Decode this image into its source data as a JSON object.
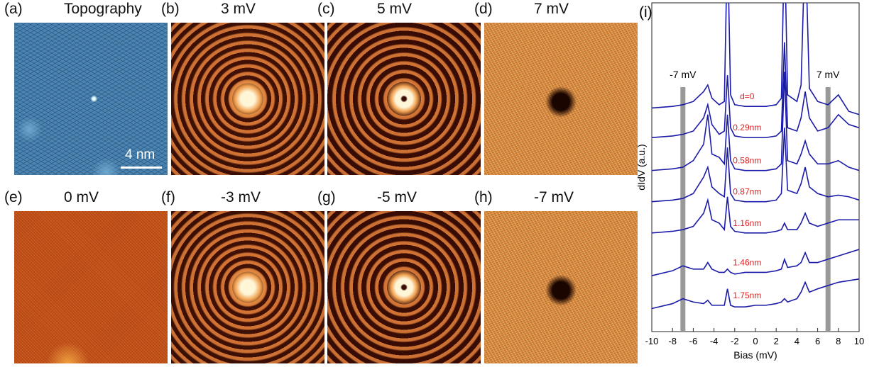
{
  "panels": [
    {
      "label": "(a)",
      "title": "Topography",
      "scale_bar": "4 nm"
    },
    {
      "label": "(b)",
      "title": "3 mV"
    },
    {
      "label": "(c)",
      "title": "5 mV"
    },
    {
      "label": "(d)",
      "title": "7 mV"
    },
    {
      "label": "(e)",
      "title": "0 mV"
    },
    {
      "label": "(f)",
      "title": "-3 mV"
    },
    {
      "label": "(g)",
      "title": "-5 mV"
    },
    {
      "label": "(h)",
      "title": "-7 mV"
    }
  ],
  "chart_data": {
    "type": "line",
    "panel_label": "(i)",
    "x_label": "Bias (mV)",
    "y_label": "dIdV (a.u.)",
    "xlim": [
      -10,
      10
    ],
    "xticks": [
      -10,
      -8,
      -6,
      -4,
      -2,
      0,
      2,
      4,
      6,
      8,
      10
    ],
    "ylim": [
      0,
      10
    ],
    "bands": [
      {
        "x": -7,
        "label": "-7 mV"
      },
      {
        "x": 7,
        "label": "7 mV"
      }
    ],
    "label_color": "#e02020",
    "x": [
      -10,
      -8,
      -7,
      -6,
      -5,
      -4.6,
      -4.2,
      -3.5,
      -3,
      -2.7,
      -2.4,
      -2,
      -1,
      0,
      1,
      2,
      2.5,
      2.8,
      3.1,
      4,
      4.4,
      4.8,
      5.2,
      6,
      7,
      8,
      9,
      10
    ],
    "series": [
      {
        "name": "d=0",
        "color": "#1a1aa8",
        "values": [
          6.8,
          6.85,
          6.9,
          7.0,
          7.3,
          7.5,
          7.1,
          6.9,
          7.0,
          12,
          7.2,
          6.9,
          6.85,
          6.85,
          6.85,
          6.9,
          7.1,
          12,
          7.2,
          7.0,
          7.5,
          12,
          7.4,
          7.0,
          6.9,
          7.2,
          6.7,
          6.6
        ]
      },
      {
        "name": "0.29nm",
        "color": "#1a1aa8",
        "values": [
          5.9,
          5.95,
          6.0,
          6.1,
          6.5,
          6.9,
          6.3,
          6.0,
          6.1,
          7.8,
          6.2,
          5.95,
          5.9,
          5.9,
          5.9,
          5.95,
          6.1,
          8.8,
          6.2,
          6.1,
          6.5,
          7.3,
          6.5,
          6.1,
          6.2,
          6.6,
          6.3,
          6.2
        ]
      },
      {
        "name": "0.58nm",
        "color": "#1a1aa8",
        "values": [
          4.9,
          4.95,
          5.0,
          5.2,
          5.7,
          6.6,
          5.4,
          5.3,
          5.1,
          6.6,
          5.2,
          4.95,
          4.9,
          4.9,
          4.9,
          4.95,
          5.1,
          7.9,
          5.2,
          5.1,
          5.4,
          5.8,
          5.4,
          5.1,
          5.1,
          5.2,
          5.0,
          4.9
        ]
      },
      {
        "name": "0.87nm",
        "color": "#1a1aa8",
        "values": [
          3.95,
          4.0,
          4.05,
          4.2,
          4.7,
          5.0,
          4.4,
          4.2,
          4.1,
          5.6,
          4.2,
          4.0,
          3.95,
          3.95,
          3.95,
          4.0,
          4.2,
          6.2,
          4.3,
          4.2,
          4.5,
          5.0,
          4.4,
          4.2,
          4.1,
          4.15,
          4.1,
          4.0
        ]
      },
      {
        "name": "1.16nm",
        "color": "#1a1aa8",
        "values": [
          3.0,
          3.05,
          3.1,
          3.2,
          3.6,
          4.0,
          3.4,
          3.3,
          3.1,
          4.1,
          3.2,
          3.05,
          3.0,
          3.0,
          3.0,
          3.05,
          3.1,
          3.3,
          3.1,
          3.1,
          3.3,
          3.6,
          3.3,
          3.2,
          3.3,
          3.4,
          3.4,
          3.4
        ]
      },
      {
        "name": "1.46nm",
        "color": "#1a1aa8",
        "values": [
          1.7,
          1.85,
          2.0,
          1.9,
          1.9,
          2.1,
          1.9,
          1.8,
          1.8,
          1.9,
          1.8,
          1.75,
          1.8,
          1.8,
          1.8,
          1.85,
          1.9,
          2.2,
          1.95,
          2.0,
          2.1,
          2.4,
          2.1,
          2.1,
          2.2,
          2.3,
          2.4,
          2.5
        ]
      },
      {
        "name": "1.75nm",
        "color": "#1a1aa8",
        "values": [
          0.7,
          0.85,
          1.0,
          0.9,
          0.85,
          0.95,
          0.8,
          0.8,
          0.8,
          1.3,
          0.8,
          0.75,
          0.75,
          0.8,
          0.8,
          0.85,
          0.9,
          1.0,
          0.9,
          1.0,
          1.2,
          1.5,
          1.2,
          1.3,
          1.4,
          1.5,
          1.55,
          1.6
        ]
      }
    ]
  }
}
